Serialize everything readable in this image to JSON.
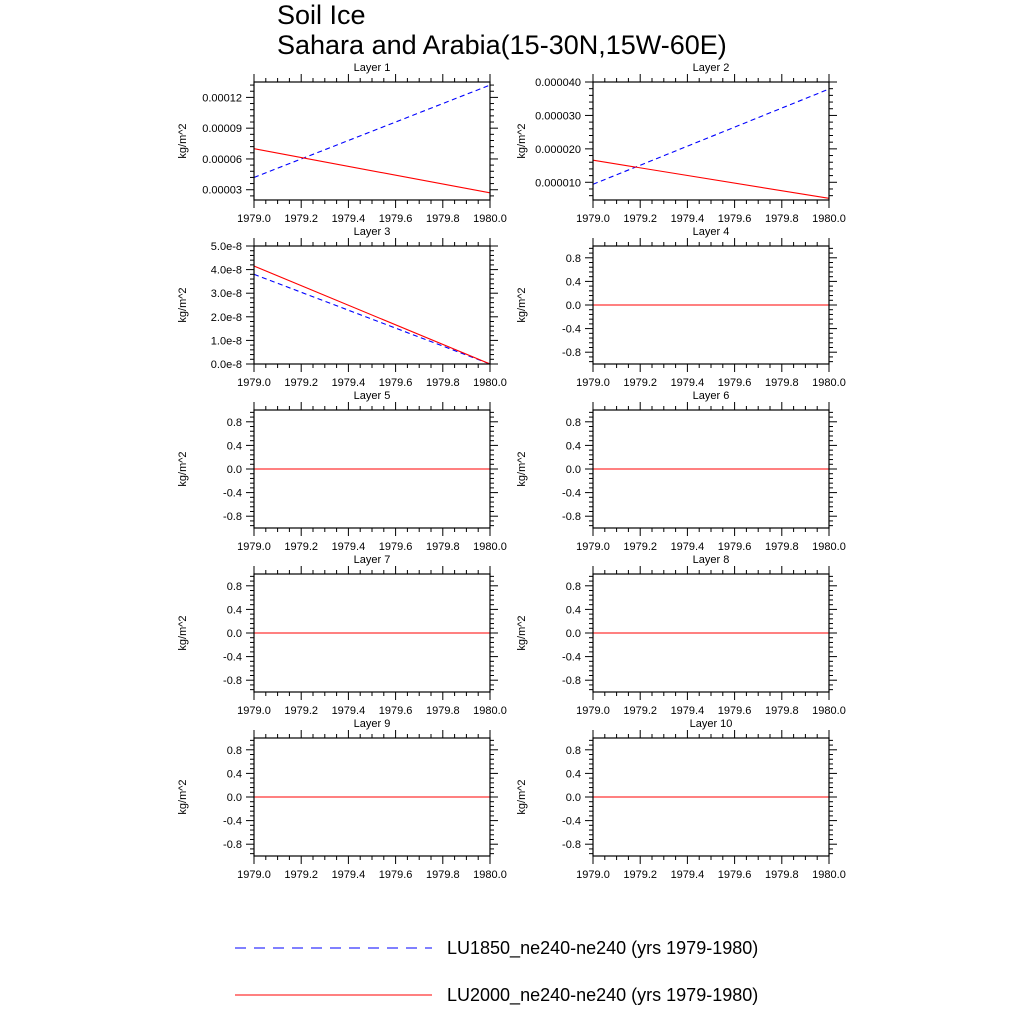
{
  "title": "Soil Ice",
  "subtitle": "Sahara and Arabia(15-30N,15W-60E)",
  "legend": [
    {
      "label": "LU1850_ne240-ne240 (yrs 1979-1980)",
      "color": "#0000ff",
      "style": "dashed"
    },
    {
      "label": "LU2000_ne240-ne240 (yrs 1979-1980)",
      "color": "#ff0000",
      "style": "solid"
    }
  ],
  "chart_data": [
    {
      "type": "line",
      "title": "Layer 1",
      "ylabel": "kg/m^2",
      "xlim": [
        1979.0,
        1980.0
      ],
      "ylim": [
        2e-05,
        0.000135
      ],
      "xticks": [
        1979.0,
        1979.2,
        1979.4,
        1979.6,
        1979.8,
        1980.0
      ],
      "xtick_labels": [
        "1979.0",
        "1979.2",
        "1979.4",
        "1979.6",
        "1979.8",
        "1980.0"
      ],
      "yticks": [
        3e-05,
        6e-05,
        9e-05,
        0.00012
      ],
      "ytick_labels": [
        "0.00003",
        "0.00006",
        "0.00009",
        "0.00012"
      ],
      "series": [
        {
          "name": "LU1850_ne240-ne240 (yrs 1979-1980)",
          "x": [
            1979.0,
            1980.0
          ],
          "y": [
            4.2e-05,
            0.000132
          ]
        },
        {
          "name": "LU2000_ne240-ne240 (yrs 1979-1980)",
          "x": [
            1979.0,
            1980.0
          ],
          "y": [
            7e-05,
            2.7e-05
          ]
        }
      ]
    },
    {
      "type": "line",
      "title": "Layer 2",
      "ylabel": "kg/m^2",
      "xlim": [
        1979.0,
        1980.0
      ],
      "ylim": [
        4.7e-06,
        4e-05
      ],
      "xticks": [
        1979.0,
        1979.2,
        1979.4,
        1979.6,
        1979.8,
        1980.0
      ],
      "xtick_labels": [
        "1979.0",
        "1979.2",
        "1979.4",
        "1979.6",
        "1979.8",
        "1980.0"
      ],
      "yticks": [
        1e-05,
        2e-05,
        3e-05,
        4e-05
      ],
      "ytick_labels": [
        "0.000010",
        "0.000020",
        "0.000030",
        "0.000040"
      ],
      "series": [
        {
          "name": "LU1850_ne240-ne240 (yrs 1979-1980)",
          "x": [
            1979.0,
            1980.0
          ],
          "y": [
            9.4e-06,
            3.79e-05
          ]
        },
        {
          "name": "LU2000_ne240-ne240 (yrs 1979-1980)",
          "x": [
            1979.0,
            1980.0
          ],
          "y": [
            1.66e-05,
            5.2e-06
          ]
        }
      ]
    },
    {
      "type": "line",
      "title": "Layer 3",
      "ylabel": "kg/m^2",
      "xlim": [
        1979.0,
        1980.0
      ],
      "ylim": [
        0,
        5e-08
      ],
      "xticks": [
        1979.0,
        1979.2,
        1979.4,
        1979.6,
        1979.8,
        1980.0
      ],
      "xtick_labels": [
        "1979.0",
        "1979.2",
        "1979.4",
        "1979.6",
        "1979.8",
        "1980.0"
      ],
      "yticks": [
        0,
        1e-08,
        2e-08,
        3e-08,
        4e-08,
        5e-08
      ],
      "ytick_labels": [
        "0.0e-8",
        "1.0e-8",
        "2.0e-8",
        "3.0e-8",
        "4.0e-8",
        "5.0e-8"
      ],
      "series": [
        {
          "name": "LU1850_ne240-ne240 (yrs 1979-1980)",
          "x": [
            1979.0,
            1980.0
          ],
          "y": [
            3.8e-08,
            0
          ]
        },
        {
          "name": "LU2000_ne240-ne240 (yrs 1979-1980)",
          "x": [
            1979.0,
            1980.0
          ],
          "y": [
            4.15e-08,
            0
          ]
        }
      ]
    },
    {
      "type": "line",
      "title": "Layer 4",
      "ylabel": "kg/m^2",
      "xlim": [
        1979.0,
        1980.0
      ],
      "ylim": [
        -1.0,
        1.0
      ],
      "xticks": [
        1979.0,
        1979.2,
        1979.4,
        1979.6,
        1979.8,
        1980.0
      ],
      "xtick_labels": [
        "1979.0",
        "1979.2",
        "1979.4",
        "1979.6",
        "1979.8",
        "1980.0"
      ],
      "yticks": [
        -0.8,
        -0.4,
        0.0,
        0.4,
        0.8
      ],
      "ytick_labels": [
        "-0.8",
        "-0.4",
        "0.0",
        "0.4",
        "0.8"
      ],
      "series": [
        {
          "name": "LU1850_ne240-ne240 (yrs 1979-1980)",
          "x": [
            1979.0,
            1980.0
          ],
          "y": [
            0,
            0
          ]
        },
        {
          "name": "LU2000_ne240-ne240 (yrs 1979-1980)",
          "x": [
            1979.0,
            1980.0
          ],
          "y": [
            0,
            0
          ]
        }
      ]
    },
    {
      "type": "line",
      "title": "Layer 5",
      "ylabel": "kg/m^2",
      "xlim": [
        1979.0,
        1980.0
      ],
      "ylim": [
        -1.0,
        1.0
      ],
      "xticks": [
        1979.0,
        1979.2,
        1979.4,
        1979.6,
        1979.8,
        1980.0
      ],
      "xtick_labels": [
        "1979.0",
        "1979.2",
        "1979.4",
        "1979.6",
        "1979.8",
        "1980.0"
      ],
      "yticks": [
        -0.8,
        -0.4,
        0.0,
        0.4,
        0.8
      ],
      "ytick_labels": [
        "-0.8",
        "-0.4",
        "0.0",
        "0.4",
        "0.8"
      ],
      "series": [
        {
          "name": "LU1850_ne240-ne240 (yrs 1979-1980)",
          "x": [
            1979.0,
            1980.0
          ],
          "y": [
            0,
            0
          ]
        },
        {
          "name": "LU2000_ne240-ne240 (yrs 1979-1980)",
          "x": [
            1979.0,
            1980.0
          ],
          "y": [
            0,
            0
          ]
        }
      ]
    },
    {
      "type": "line",
      "title": "Layer 6",
      "ylabel": "kg/m^2",
      "xlim": [
        1979.0,
        1980.0
      ],
      "ylim": [
        -1.0,
        1.0
      ],
      "xticks": [
        1979.0,
        1979.2,
        1979.4,
        1979.6,
        1979.8,
        1980.0
      ],
      "xtick_labels": [
        "1979.0",
        "1979.2",
        "1979.4",
        "1979.6",
        "1979.8",
        "1980.0"
      ],
      "yticks": [
        -0.8,
        -0.4,
        0.0,
        0.4,
        0.8
      ],
      "ytick_labels": [
        "-0.8",
        "-0.4",
        "0.0",
        "0.4",
        "0.8"
      ],
      "series": [
        {
          "name": "LU1850_ne240-ne240 (yrs 1979-1980)",
          "x": [
            1979.0,
            1980.0
          ],
          "y": [
            0,
            0
          ]
        },
        {
          "name": "LU2000_ne240-ne240 (yrs 1979-1980)",
          "x": [
            1979.0,
            1980.0
          ],
          "y": [
            0,
            0
          ]
        }
      ]
    },
    {
      "type": "line",
      "title": "Layer 7",
      "ylabel": "kg/m^2",
      "xlim": [
        1979.0,
        1980.0
      ],
      "ylim": [
        -1.0,
        1.0
      ],
      "xticks": [
        1979.0,
        1979.2,
        1979.4,
        1979.6,
        1979.8,
        1980.0
      ],
      "xtick_labels": [
        "1979.0",
        "1979.2",
        "1979.4",
        "1979.6",
        "1979.8",
        "1980.0"
      ],
      "yticks": [
        -0.8,
        -0.4,
        0.0,
        0.4,
        0.8
      ],
      "ytick_labels": [
        "-0.8",
        "-0.4",
        "0.0",
        "0.4",
        "0.8"
      ],
      "series": [
        {
          "name": "LU1850_ne240-ne240 (yrs 1979-1980)",
          "x": [
            1979.0,
            1980.0
          ],
          "y": [
            0,
            0
          ]
        },
        {
          "name": "LU2000_ne240-ne240 (yrs 1979-1980)",
          "x": [
            1979.0,
            1980.0
          ],
          "y": [
            0,
            0
          ]
        }
      ]
    },
    {
      "type": "line",
      "title": "Layer 8",
      "ylabel": "kg/m^2",
      "xlim": [
        1979.0,
        1980.0
      ],
      "ylim": [
        -1.0,
        1.0
      ],
      "xticks": [
        1979.0,
        1979.2,
        1979.4,
        1979.6,
        1979.8,
        1980.0
      ],
      "xtick_labels": [
        "1979.0",
        "1979.2",
        "1979.4",
        "1979.6",
        "1979.8",
        "1980.0"
      ],
      "yticks": [
        -0.8,
        -0.4,
        0.0,
        0.4,
        0.8
      ],
      "ytick_labels": [
        "-0.8",
        "-0.4",
        "0.0",
        "0.4",
        "0.8"
      ],
      "series": [
        {
          "name": "LU1850_ne240-ne240 (yrs 1979-1980)",
          "x": [
            1979.0,
            1980.0
          ],
          "y": [
            0,
            0
          ]
        },
        {
          "name": "LU2000_ne240-ne240 (yrs 1979-1980)",
          "x": [
            1979.0,
            1980.0
          ],
          "y": [
            0,
            0
          ]
        }
      ]
    },
    {
      "type": "line",
      "title": "Layer 9",
      "ylabel": "kg/m^2",
      "xlim": [
        1979.0,
        1980.0
      ],
      "ylim": [
        -1.0,
        1.0
      ],
      "xticks": [
        1979.0,
        1979.2,
        1979.4,
        1979.6,
        1979.8,
        1980.0
      ],
      "xtick_labels": [
        "1979.0",
        "1979.2",
        "1979.4",
        "1979.6",
        "1979.8",
        "1980.0"
      ],
      "yticks": [
        -0.8,
        -0.4,
        0.0,
        0.4,
        0.8
      ],
      "ytick_labels": [
        "-0.8",
        "-0.4",
        "0.0",
        "0.4",
        "0.8"
      ],
      "series": [
        {
          "name": "LU1850_ne240-ne240 (yrs 1979-1980)",
          "x": [
            1979.0,
            1980.0
          ],
          "y": [
            0,
            0
          ]
        },
        {
          "name": "LU2000_ne240-ne240 (yrs 1979-1980)",
          "x": [
            1979.0,
            1980.0
          ],
          "y": [
            0,
            0
          ]
        }
      ]
    },
    {
      "type": "line",
      "title": "Layer 10",
      "ylabel": "kg/m^2",
      "xlim": [
        1979.0,
        1980.0
      ],
      "ylim": [
        -1.0,
        1.0
      ],
      "xticks": [
        1979.0,
        1979.2,
        1979.4,
        1979.6,
        1979.8,
        1980.0
      ],
      "xtick_labels": [
        "1979.0",
        "1979.2",
        "1979.4",
        "1979.6",
        "1979.8",
        "1980.0"
      ],
      "yticks": [
        -0.8,
        -0.4,
        0.0,
        0.4,
        0.8
      ],
      "ytick_labels": [
        "-0.8",
        "-0.4",
        "0.0",
        "0.4",
        "0.8"
      ],
      "series": [
        {
          "name": "LU1850_ne240-ne240 (yrs 1979-1980)",
          "x": [
            1979.0,
            1980.0
          ],
          "y": [
            0,
            0
          ]
        },
        {
          "name": "LU2000_ne240-ne240 (yrs 1979-1980)",
          "x": [
            1979.0,
            1980.0
          ],
          "y": [
            0,
            0
          ]
        }
      ]
    }
  ]
}
